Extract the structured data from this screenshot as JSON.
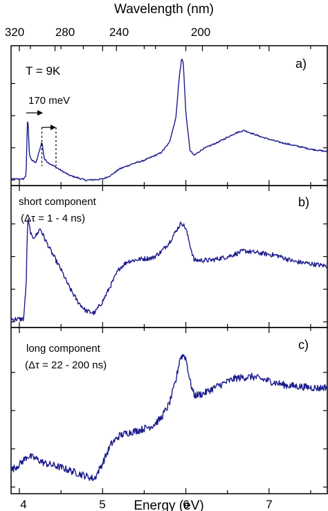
{
  "chart_data": {
    "type": "line",
    "top_axis": {
      "label": "Wavelength (nm)",
      "tick_labels": [
        "320",
        "280",
        "240",
        "200"
      ]
    },
    "x_axis": {
      "label": "Energy (eV)",
      "tick_labels": [
        "4",
        "5",
        "6",
        "7"
      ],
      "range": [
        3.9,
        7.7
      ]
    },
    "line_color": "#1a1a8c",
    "panels": [
      {
        "id": "a",
        "label": "a)",
        "annotation": "T = 9K",
        "arrow_label": "170 meV",
        "dashed_markers_eV": [
          4.27,
          4.44
        ],
        "y_range": [
          0,
          1
        ],
        "x": [
          3.9,
          4.0,
          4.05,
          4.08,
          4.1,
          4.12,
          4.15,
          4.2,
          4.25,
          4.27,
          4.3,
          4.35,
          4.45,
          4.6,
          4.8,
          5.0,
          5.1,
          5.2,
          5.35,
          5.5,
          5.7,
          5.8,
          5.88,
          5.92,
          5.95,
          5.97,
          6.0,
          6.05,
          6.1,
          6.2,
          6.4,
          6.6,
          6.7,
          6.9,
          7.1,
          7.3,
          7.5,
          7.7
        ],
        "y": [
          0.03,
          0.03,
          0.03,
          0.06,
          0.55,
          0.23,
          0.18,
          0.16,
          0.28,
          0.33,
          0.19,
          0.16,
          0.12,
          0.06,
          0.02,
          0.03,
          0.06,
          0.11,
          0.15,
          0.18,
          0.24,
          0.32,
          0.52,
          0.84,
          1.0,
          0.96,
          0.56,
          0.26,
          0.22,
          0.27,
          0.33,
          0.4,
          0.42,
          0.37,
          0.33,
          0.3,
          0.27,
          0.25
        ]
      },
      {
        "id": "b",
        "label": "b)",
        "annotation_line1": "short component",
        "annotation_line2": "(Δτ = 1 - 4 ns)",
        "y_range": [
          0,
          1
        ],
        "x": [
          3.9,
          4.0,
          4.05,
          4.08,
          4.1,
          4.15,
          4.2,
          4.25,
          4.3,
          4.4,
          4.5,
          4.6,
          4.7,
          4.8,
          4.9,
          5.0,
          5.1,
          5.2,
          5.3,
          5.45,
          5.6,
          5.7,
          5.8,
          5.9,
          5.95,
          6.0,
          6.05,
          6.1,
          6.3,
          6.5,
          6.7,
          6.9,
          7.1,
          7.3,
          7.5,
          7.7
        ],
        "y": [
          0.03,
          0.03,
          0.03,
          0.3,
          0.88,
          0.72,
          0.74,
          0.8,
          0.72,
          0.58,
          0.45,
          0.3,
          0.18,
          0.1,
          0.08,
          0.18,
          0.32,
          0.46,
          0.52,
          0.54,
          0.55,
          0.6,
          0.68,
          0.8,
          0.85,
          0.8,
          0.66,
          0.53,
          0.53,
          0.56,
          0.61,
          0.59,
          0.57,
          0.52,
          0.5,
          0.48
        ]
      },
      {
        "id": "c",
        "label": "c)",
        "annotation_line1": "long component",
        "annotation_line2": "(Δτ = 22 - 200 ns)",
        "y_range": [
          0,
          1
        ],
        "x": [
          3.9,
          4.0,
          4.1,
          4.2,
          4.3,
          4.5,
          4.7,
          4.9,
          5.0,
          5.1,
          5.2,
          5.3,
          5.45,
          5.6,
          5.7,
          5.8,
          5.88,
          5.93,
          5.97,
          6.0,
          6.05,
          6.1,
          6.2,
          6.4,
          6.6,
          6.8,
          7.0,
          7.2,
          7.4,
          7.6,
          7.7
        ],
        "y": [
          0.1,
          0.14,
          0.2,
          0.18,
          0.15,
          0.12,
          0.08,
          0.04,
          0.15,
          0.28,
          0.34,
          0.36,
          0.38,
          0.41,
          0.46,
          0.56,
          0.72,
          0.88,
          0.9,
          0.88,
          0.72,
          0.62,
          0.63,
          0.69,
          0.74,
          0.75,
          0.72,
          0.69,
          0.68,
          0.67,
          0.68
        ]
      }
    ]
  }
}
